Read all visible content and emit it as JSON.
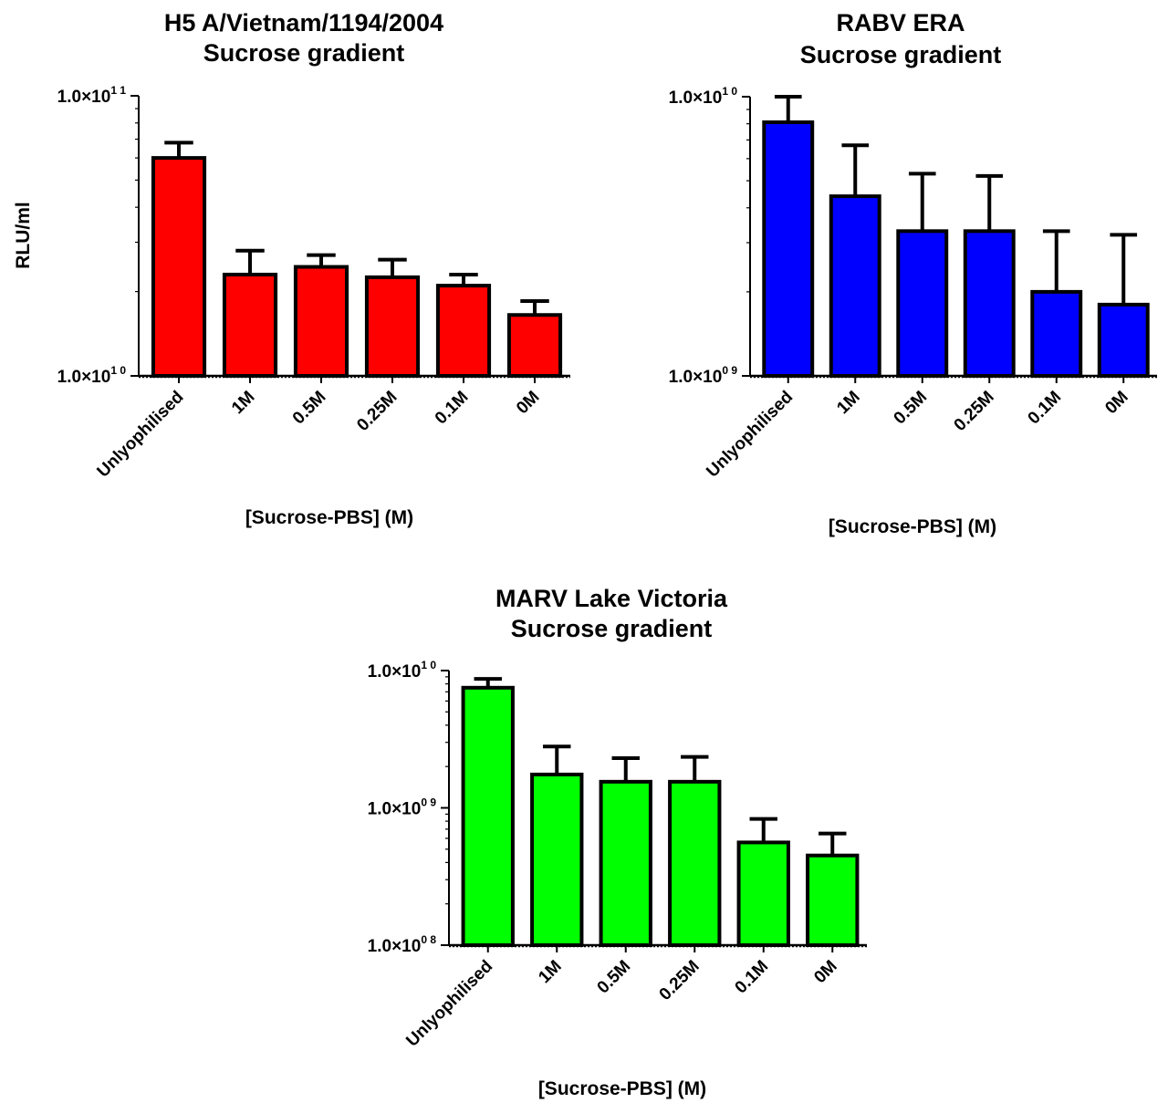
{
  "chart_data": [
    {
      "type": "bar",
      "title": [
        "H5 A/Vietnam/1194/2004",
        "Sucrose gradient"
      ],
      "ylabel": "RLU/ml",
      "xlabel": "[Sucrose-PBS] (M)",
      "yscale": "log",
      "ylim": [
        10000000000,
        100000000000
      ],
      "ytick_labels": [
        {
          "value": 100000000000,
          "mantissa": "1.0×10",
          "exponent": "1 1"
        },
        {
          "value": 10000000000,
          "mantissa": "1.0×10",
          "exponent": "1 0"
        }
      ],
      "categories": [
        "Unlyophilised",
        "1M",
        "0.5M",
        "0.25M",
        "0.1M",
        "0M"
      ],
      "values": [
        60000000000,
        23000000000,
        24500000000,
        22500000000,
        21000000000,
        16500000000
      ],
      "error_upper": [
        68000000000,
        28000000000,
        27000000000,
        26000000000,
        23000000000,
        18500000000
      ],
      "color": "#ff0000"
    },
    {
      "type": "bar",
      "title": [
        "RABV  ERA",
        "Sucrose gradient"
      ],
      "ylabel": "",
      "xlabel": "[Sucrose-PBS] (M)",
      "yscale": "log",
      "ylim": [
        1000000000,
        10000000000
      ],
      "ytick_labels": [
        {
          "value": 10000000000,
          "mantissa": "1.0×10",
          "exponent": "1 0"
        },
        {
          "value": 1000000000,
          "mantissa": "1.0×10",
          "exponent": "0 9"
        }
      ],
      "categories": [
        "Unlyophilised",
        "1M",
        "0.5M",
        "0.25M",
        "0.1M",
        "0M"
      ],
      "values": [
        8100000000,
        4400000000,
        3300000000,
        3300000000,
        2000000000,
        1800000000
      ],
      "error_upper": [
        10000000000,
        6700000000,
        5300000000,
        5200000000,
        3300000000,
        3200000000
      ],
      "color": "#0000ff"
    },
    {
      "type": "bar",
      "title": [
        "MARV Lake Victoria",
        "Sucrose gradient"
      ],
      "ylabel": "",
      "xlabel": "[Sucrose-PBS] (M)",
      "yscale": "log",
      "ylim": [
        100000000,
        10000000000
      ],
      "ytick_labels": [
        {
          "value": 10000000000,
          "mantissa": "1.0×10",
          "exponent": "1 0"
        },
        {
          "value": 1000000000,
          "mantissa": "1.0×10",
          "exponent": "0 9"
        },
        {
          "value": 100000000,
          "mantissa": "1.0×10",
          "exponent": "0 8"
        }
      ],
      "categories": [
        "Unlyophilised",
        "1M",
        "0.5M",
        "0.25M",
        "0.1M",
        "0M"
      ],
      "values": [
        7500000000,
        1750000000,
        1550000000,
        1550000000,
        560000000,
        450000000
      ],
      "error_upper": [
        8700000000,
        2800000000,
        2300000000,
        2350000000,
        830000000,
        650000000
      ],
      "color": "#00ff00"
    }
  ]
}
